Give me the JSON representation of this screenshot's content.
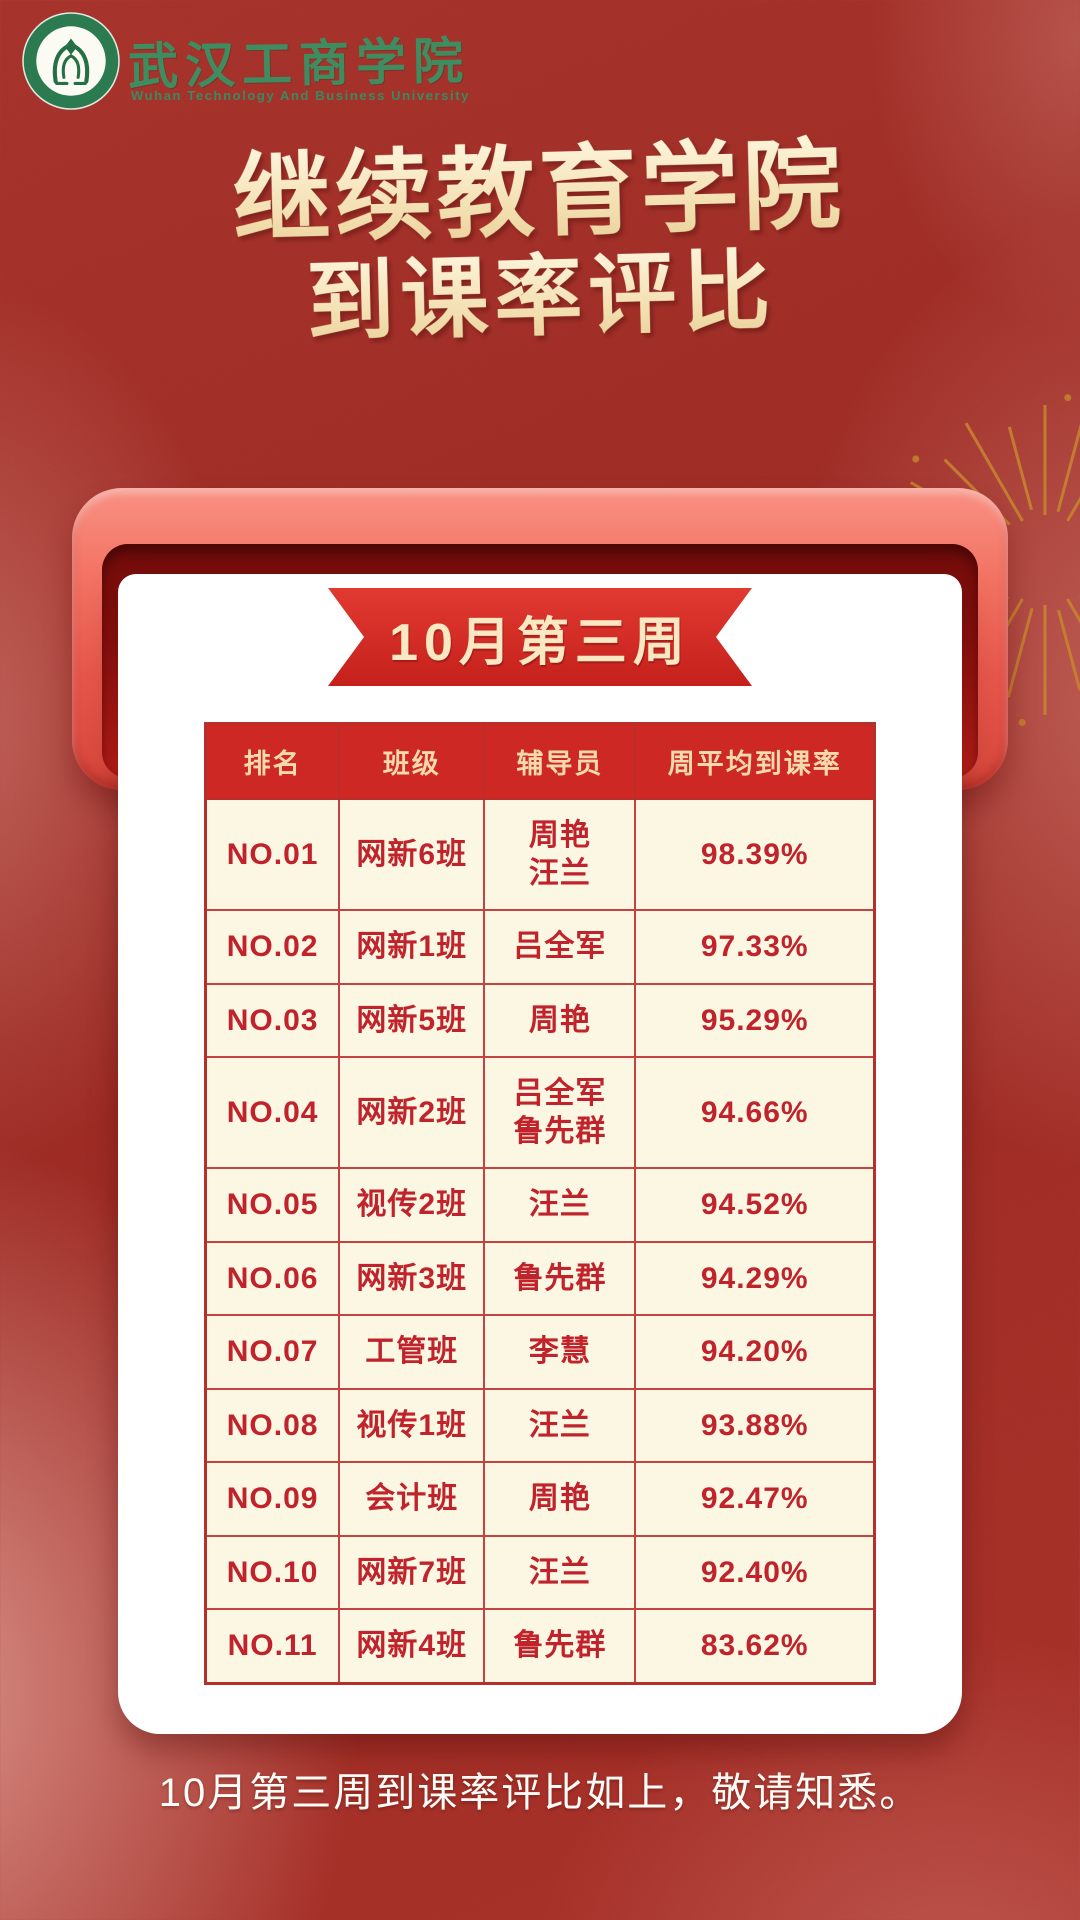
{
  "colors": {
    "background_red": "#9e2b25",
    "frame_coral": "#ee6a5c",
    "table_header_red": "#cd2823",
    "cell_cream": "#fcf7e2",
    "text_red": "#c0232c",
    "title_cream": "#f3e0b2",
    "brand_green": "#3f8c61",
    "firework_gold": "#c6832f"
  },
  "brand": {
    "logo": "university-emblem",
    "university_name_cn": "武汉工商学院",
    "university_name_en": "Wuhan Technology And Business University"
  },
  "title": {
    "line1": "继续教育学院",
    "line2": "到课率评比"
  },
  "ribbon": {
    "label": "10月第三周"
  },
  "table": {
    "columns": [
      "排名",
      "班级",
      "辅导员",
      "周平均到课率"
    ],
    "rows": [
      {
        "rank": "NO.01",
        "class": "网新6班",
        "counselor": "周艳\n汪兰",
        "rate": "98.39%"
      },
      {
        "rank": "NO.02",
        "class": "网新1班",
        "counselor": "吕全军",
        "rate": "97.33%"
      },
      {
        "rank": "NO.03",
        "class": "网新5班",
        "counselor": "周艳",
        "rate": "95.29%"
      },
      {
        "rank": "NO.04",
        "class": "网新2班",
        "counselor": "吕全军\n鲁先群",
        "rate": "94.66%"
      },
      {
        "rank": "NO.05",
        "class": "视传2班",
        "counselor": "汪兰",
        "rate": "94.52%"
      },
      {
        "rank": "NO.06",
        "class": "网新3班",
        "counselor": "鲁先群",
        "rate": "94.29%"
      },
      {
        "rank": "NO.07",
        "class": "工管班",
        "counselor": "李慧",
        "rate": "94.20%"
      },
      {
        "rank": "NO.08",
        "class": "视传1班",
        "counselor": "汪兰",
        "rate": "93.88%"
      },
      {
        "rank": "NO.09",
        "class": "会计班",
        "counselor": "周艳",
        "rate": "92.47%"
      },
      {
        "rank": "NO.10",
        "class": "网新7班",
        "counselor": "汪兰",
        "rate": "92.40%"
      },
      {
        "rank": "NO.11",
        "class": "网新4班",
        "counselor": "鲁先群",
        "rate": "83.62%"
      }
    ]
  },
  "footer": {
    "note": "10月第三周到课率评比如上，敬请知悉。"
  }
}
